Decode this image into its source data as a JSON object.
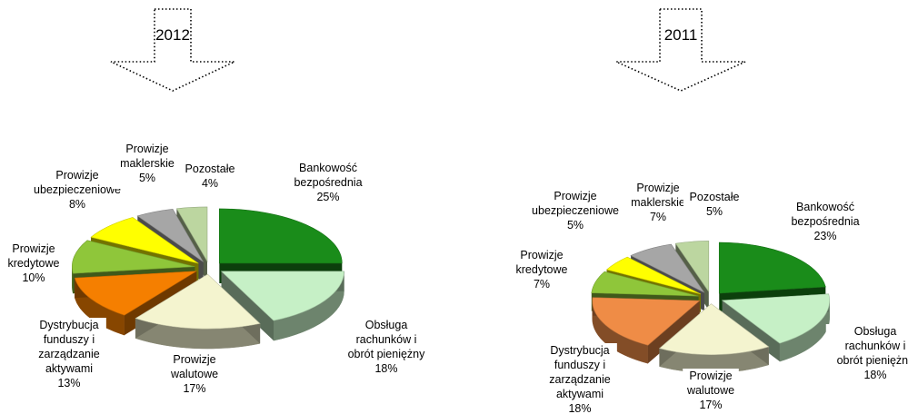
{
  "chart_data": [
    {
      "type": "pie",
      "banner": "2012",
      "slices": [
        {
          "label": [
            "Bankowość",
            "bezpośrednia"
          ],
          "value": 25,
          "value_text": "25%",
          "color": "#1a8c1a"
        },
        {
          "label": [
            "Obsługa",
            "rachunków i",
            "obrót pieniężny"
          ],
          "value": 18,
          "value_text": "18%",
          "color": "#c6f0c6"
        },
        {
          "label": [
            "Prowizje",
            "walutowe"
          ],
          "value": 17,
          "value_text": "17%",
          "color": "#f4f4cf"
        },
        {
          "label": [
            "Dystrybucja",
            "funduszy i",
            "zarządzanie",
            "aktywami"
          ],
          "value": 13,
          "value_text": "13%",
          "color": "#f57f00"
        },
        {
          "label": [
            "Prowizje",
            "kredytowe"
          ],
          "value": 10,
          "value_text": "10%",
          "color": "#8fc63a"
        },
        {
          "label": [
            "Prowizje",
            "ubezpieczeniowe"
          ],
          "value": 8,
          "value_text": "8%",
          "color": "#ffff00"
        },
        {
          "label": [
            "Prowizje",
            "maklerskie"
          ],
          "value": 5,
          "value_text": "5%",
          "color": "#a6a6a6"
        },
        {
          "label": [
            "Pozostałe"
          ],
          "value": 4,
          "value_text": "4%",
          "color": "#bcd6a0"
        }
      ]
    },
    {
      "type": "pie",
      "banner": "2011",
      "slices": [
        {
          "label": [
            "Bankowość",
            "bezpośrednia"
          ],
          "value": 23,
          "value_text": "23%",
          "color": "#1a8c1a"
        },
        {
          "label": [
            "Obsługa",
            "rachunków i",
            "obrót pieniężny"
          ],
          "value": 18,
          "value_text": "18%",
          "color": "#c6f0c6"
        },
        {
          "label": [
            "Prowizje",
            "walutowe"
          ],
          "value": 17,
          "value_text": "17%",
          "color": "#f4f4cf"
        },
        {
          "label": [
            "Dystrybucja",
            "funduszy i",
            "zarządzanie",
            "aktywami"
          ],
          "value": 18,
          "value_text": "18%",
          "color": "#ef8c46"
        },
        {
          "label": [
            "Prowizje",
            "kredytowe"
          ],
          "value": 7,
          "value_text": "7%",
          "color": "#8fc63a"
        },
        {
          "label": [
            "Prowizje",
            "ubezpieczeniowe"
          ],
          "value": 5,
          "value_text": "5%",
          "color": "#ffff00"
        },
        {
          "label": [
            "Prowizje",
            "maklerskie"
          ],
          "value": 7,
          "value_text": "7%",
          "color": "#a6a6a6"
        },
        {
          "label": [
            "Pozostałe"
          ],
          "value": 5,
          "value_text": "5%",
          "color": "#bcd6a0"
        }
      ]
    }
  ]
}
